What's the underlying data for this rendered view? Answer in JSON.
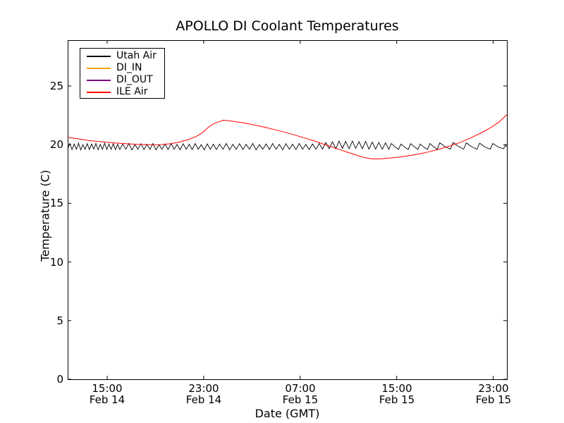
{
  "chart_data": {
    "type": "line",
    "title": "APOLLO DI Coolant Temperatures",
    "xlabel": "Date (GMT)",
    "ylabel": "Temperature (C)",
    "x_unit": "hours since Feb 14 00:00 GMT",
    "xlim": [
      11.73,
      48.13
    ],
    "ylim": [
      0,
      28.9
    ],
    "grid": false,
    "legend_position": "upper left",
    "background": "#ffffff",
    "x_ticks": [
      {
        "value": 15,
        "time": "15:00",
        "date": "Feb 14"
      },
      {
        "value": 23,
        "time": "23:00",
        "date": "Feb 14"
      },
      {
        "value": 31,
        "time": "07:00",
        "date": "Feb 15"
      },
      {
        "value": 39,
        "time": "15:00",
        "date": "Feb 15"
      },
      {
        "value": 47,
        "time": "23:00",
        "date": "Feb 15"
      }
    ],
    "y_ticks": [
      0,
      5,
      10,
      15,
      20,
      25
    ],
    "series": [
      {
        "name": "Utah Air",
        "color": "#000000",
        "width": 0.9,
        "points": [
          [
            11.73,
            19.62
          ],
          [
            11.91,
            20.1
          ],
          [
            12.09,
            19.58
          ],
          [
            12.27,
            20.05
          ],
          [
            12.45,
            19.6
          ],
          [
            12.63,
            20.12
          ],
          [
            12.81,
            19.55
          ],
          [
            12.99,
            20.0
          ],
          [
            13.17,
            19.6
          ],
          [
            13.35,
            20.08
          ],
          [
            13.53,
            19.58
          ],
          [
            13.71,
            20.05
          ],
          [
            13.89,
            19.62
          ],
          [
            14.07,
            20.1
          ],
          [
            14.25,
            19.56
          ],
          [
            14.43,
            20.02
          ],
          [
            14.61,
            19.6
          ],
          [
            14.79,
            20.12
          ],
          [
            14.97,
            19.58
          ],
          [
            15.15,
            20.05
          ],
          [
            15.33,
            19.6
          ],
          [
            15.51,
            20.08
          ],
          [
            15.69,
            19.57
          ],
          [
            15.87,
            20.03
          ],
          [
            16.05,
            19.58
          ],
          [
            16.3,
            20.05
          ],
          [
            16.55,
            19.6
          ],
          [
            16.8,
            20.1
          ],
          [
            17.05,
            19.55
          ],
          [
            17.3,
            20.0
          ],
          [
            17.55,
            19.6
          ],
          [
            17.8,
            20.08
          ],
          [
            18.05,
            19.58
          ],
          [
            18.3,
            20.03
          ],
          [
            18.55,
            19.6
          ],
          [
            18.8,
            20.1
          ],
          [
            19.05,
            19.55
          ],
          [
            19.3,
            20.0
          ],
          [
            19.55,
            19.6
          ],
          [
            19.8,
            20.06
          ],
          [
            20.05,
            19.58
          ],
          [
            20.3,
            20.1
          ],
          [
            20.55,
            19.6
          ],
          [
            20.8,
            20.02
          ],
          [
            21.05,
            19.56
          ],
          [
            21.3,
            20.08
          ],
          [
            21.55,
            19.6
          ],
          [
            21.8,
            20.04
          ],
          [
            22.05,
            19.58
          ],
          [
            22.3,
            20.1
          ],
          [
            22.55,
            19.6
          ],
          [
            22.8,
            20.0
          ],
          [
            23.05,
            19.56
          ],
          [
            23.3,
            20.06
          ],
          [
            23.55,
            19.6
          ],
          [
            23.8,
            20.04
          ],
          [
            24.05,
            19.58
          ],
          [
            24.32,
            20.05
          ],
          [
            24.6,
            19.6
          ],
          [
            24.87,
            20.1
          ],
          [
            25.15,
            19.55
          ],
          [
            25.42,
            20.02
          ],
          [
            25.7,
            19.6
          ],
          [
            25.97,
            20.08
          ],
          [
            26.25,
            19.58
          ],
          [
            26.52,
            20.03
          ],
          [
            26.8,
            19.6
          ],
          [
            27.07,
            20.1
          ],
          [
            27.35,
            19.55
          ],
          [
            27.62,
            20.0
          ],
          [
            27.9,
            19.6
          ],
          [
            28.17,
            20.06
          ],
          [
            28.45,
            19.58
          ],
          [
            28.72,
            20.1
          ],
          [
            29.0,
            19.6
          ],
          [
            29.27,
            20.02
          ],
          [
            29.55,
            19.56
          ],
          [
            29.82,
            20.08
          ],
          [
            30.1,
            19.6
          ],
          [
            30.37,
            20.04
          ],
          [
            30.65,
            19.58
          ],
          [
            30.92,
            20.1
          ],
          [
            31.2,
            19.6
          ],
          [
            31.47,
            20.02
          ],
          [
            31.75,
            19.58
          ],
          [
            32.02,
            20.06
          ],
          [
            32.3,
            19.6
          ],
          [
            32.57,
            20.1
          ],
          [
            32.85,
            19.62
          ],
          [
            33.12,
            20.18
          ],
          [
            33.4,
            19.65
          ],
          [
            33.67,
            20.25
          ],
          [
            33.95,
            19.65
          ],
          [
            34.22,
            20.3
          ],
          [
            34.5,
            19.68
          ],
          [
            34.77,
            20.28
          ],
          [
            35.05,
            19.65
          ],
          [
            35.32,
            20.3
          ],
          [
            35.6,
            19.68
          ],
          [
            35.87,
            20.25
          ],
          [
            36.15,
            19.65
          ],
          [
            36.42,
            20.28
          ],
          [
            36.7,
            19.62
          ],
          [
            36.97,
            20.22
          ],
          [
            37.25,
            19.62
          ],
          [
            37.52,
            20.18
          ],
          [
            37.8,
            19.6
          ],
          [
            38.07,
            20.15
          ],
          [
            38.35,
            19.6
          ],
          [
            38.55,
            20.1
          ],
          [
            38.9,
            19.78
          ],
          [
            39.15,
            19.6
          ],
          [
            39.35,
            20.05
          ],
          [
            39.7,
            19.75
          ],
          [
            39.95,
            19.58
          ],
          [
            40.15,
            20.08
          ],
          [
            40.5,
            19.78
          ],
          [
            40.75,
            19.6
          ],
          [
            40.95,
            20.05
          ],
          [
            41.3,
            19.75
          ],
          [
            41.55,
            19.6
          ],
          [
            41.75,
            20.1
          ],
          [
            42.1,
            19.78
          ],
          [
            42.35,
            19.6
          ],
          [
            42.57,
            20.15
          ],
          [
            43.01,
            19.82
          ],
          [
            43.45,
            19.62
          ],
          [
            43.67,
            20.18
          ],
          [
            44.11,
            19.85
          ],
          [
            44.55,
            19.62
          ],
          [
            44.77,
            20.15
          ],
          [
            45.21,
            19.82
          ],
          [
            45.65,
            19.6
          ],
          [
            45.87,
            20.12
          ],
          [
            46.31,
            19.8
          ],
          [
            46.75,
            19.62
          ],
          [
            46.97,
            20.1
          ],
          [
            47.41,
            19.8
          ],
          [
            47.85,
            19.65
          ],
          [
            48.0,
            19.95
          ],
          [
            48.13,
            19.82
          ]
        ]
      },
      {
        "name": "DI_IN",
        "color": "#ffa500",
        "width": 1,
        "points": []
      },
      {
        "name": "DI_OUT",
        "color": "#800080",
        "width": 1,
        "points": []
      },
      {
        "name": "ILE Air",
        "color": "#ff0000",
        "width": 1,
        "points": [
          [
            11.73,
            20.62
          ],
          [
            12.5,
            20.5
          ],
          [
            13.5,
            20.35
          ],
          [
            14.5,
            20.24
          ],
          [
            15.5,
            20.15
          ],
          [
            16.5,
            20.08
          ],
          [
            17.5,
            20.02
          ],
          [
            18.5,
            19.99
          ],
          [
            19.5,
            20.0
          ],
          [
            20.3,
            20.08
          ],
          [
            21.0,
            20.22
          ],
          [
            21.8,
            20.45
          ],
          [
            22.5,
            20.75
          ],
          [
            23.0,
            21.1
          ],
          [
            23.35,
            21.45
          ],
          [
            23.7,
            21.7
          ],
          [
            24.0,
            21.85
          ],
          [
            24.3,
            21.95
          ],
          [
            24.6,
            22.08
          ],
          [
            25.0,
            22.05
          ],
          [
            25.5,
            21.98
          ],
          [
            26.3,
            21.85
          ],
          [
            27.2,
            21.68
          ],
          [
            28.2,
            21.45
          ],
          [
            29.2,
            21.2
          ],
          [
            30.2,
            20.92
          ],
          [
            31.2,
            20.62
          ],
          [
            32.2,
            20.3
          ],
          [
            33.2,
            19.95
          ],
          [
            34.2,
            19.6
          ],
          [
            35.0,
            19.32
          ],
          [
            35.8,
            19.05
          ],
          [
            36.4,
            18.88
          ],
          [
            37.0,
            18.78
          ],
          [
            37.6,
            18.78
          ],
          [
            38.4,
            18.85
          ],
          [
            39.3,
            18.95
          ],
          [
            40.3,
            19.1
          ],
          [
            41.3,
            19.3
          ],
          [
            42.3,
            19.55
          ],
          [
            43.3,
            19.85
          ],
          [
            44.3,
            20.2
          ],
          [
            45.2,
            20.6
          ],
          [
            46.0,
            21.0
          ],
          [
            46.8,
            21.45
          ],
          [
            47.5,
            21.95
          ],
          [
            48.13,
            22.55
          ]
        ]
      }
    ]
  }
}
